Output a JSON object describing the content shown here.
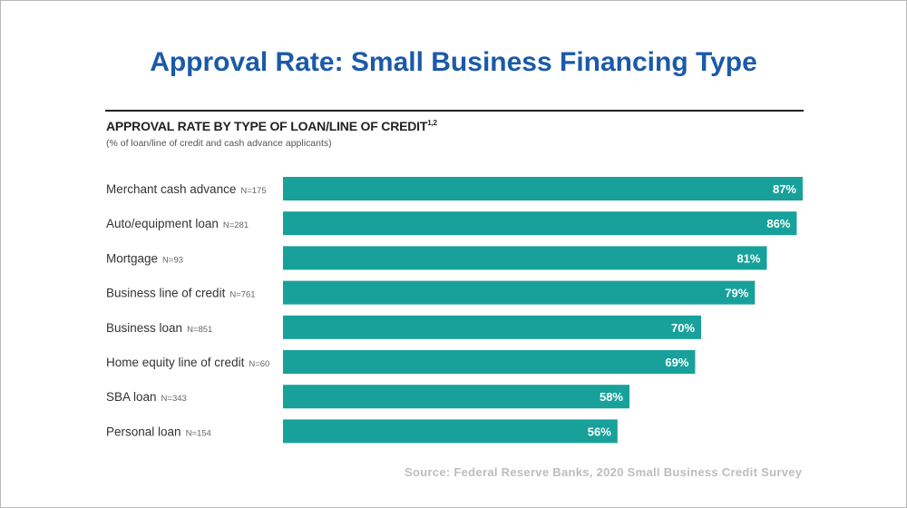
{
  "page": {
    "title": "Approval Rate: Small Business Financing Type",
    "source": "Source: Federal Reserve Banks, 2020 Small Business Credit Survey"
  },
  "chart_data": {
    "type": "bar",
    "orientation": "horizontal",
    "title": "APPROVAL RATE BY TYPE OF LOAN/LINE OF CREDIT",
    "title_superscript": "1,2",
    "subtitle": "(% of loan/line of credit and cash advance applicants)",
    "categories": [
      "Merchant cash advance",
      "Auto/equipment loan",
      "Mortgage",
      "Business line of credit",
      "Business loan",
      "Home equity line of credit",
      "SBA loan",
      "Personal loan"
    ],
    "sample_sizes": [
      "N=175",
      "N=281",
      "N=93",
      "N=761",
      "N=851",
      "N=60",
      "N=343",
      "N=154"
    ],
    "values": [
      87,
      86,
      81,
      79,
      70,
      69,
      58,
      56
    ],
    "value_labels": [
      "87%",
      "86%",
      "81%",
      "79%",
      "70%",
      "69%",
      "58%",
      "56%"
    ],
    "unit": "%",
    "xlim": [
      0,
      100
    ],
    "bar_color": "#17a19a",
    "grid": false,
    "legend": "none"
  }
}
